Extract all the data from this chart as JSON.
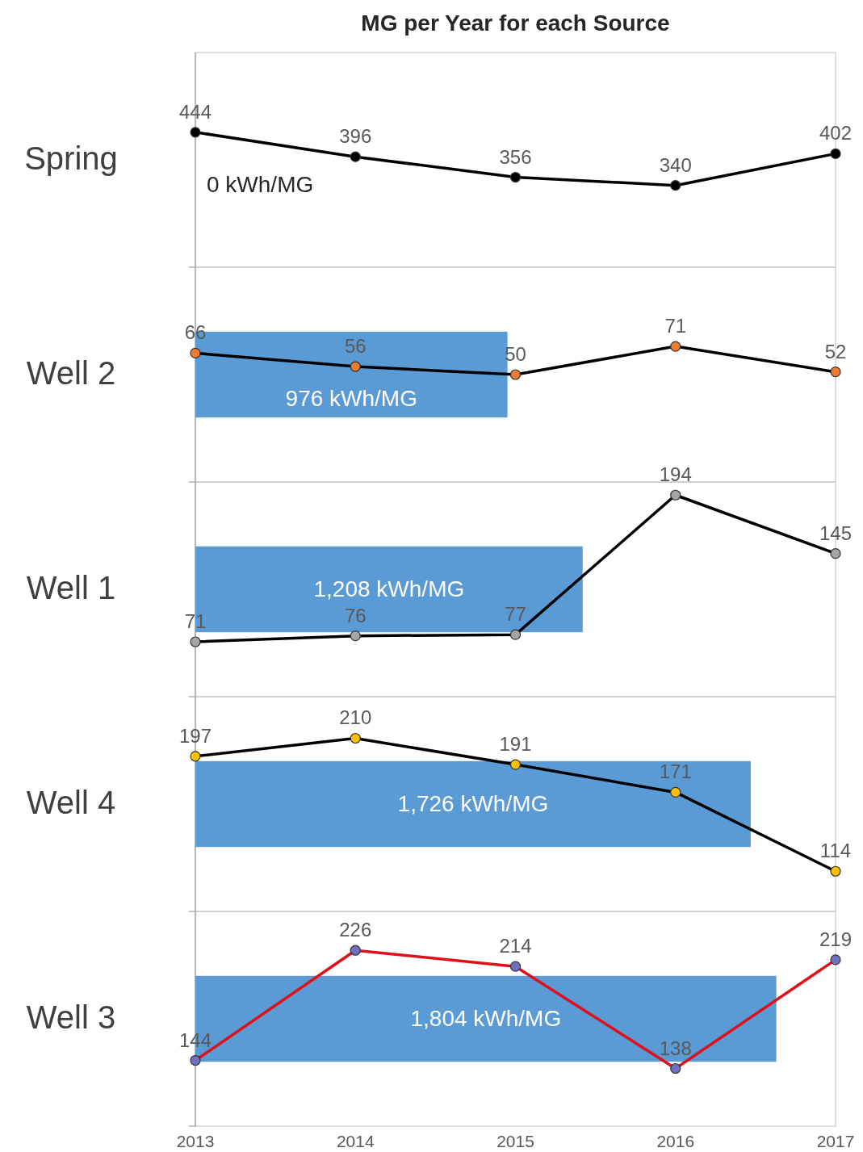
{
  "chart_data": [
    {
      "type": "line",
      "title": "MG per Year for each Source",
      "ylabel": "Spring",
      "x": [
        2013,
        2014,
        2015,
        2016,
        2017
      ],
      "xlim": [
        2013,
        2017
      ],
      "ylim": [
        180,
        600
      ],
      "tick_labels": false,
      "data_labels": true,
      "marker": "circle",
      "series": [
        {
          "color": "#000000",
          "colors": [
            "#000000",
            "#000000",
            "#000000",
            "#000000",
            "#000000"
          ],
          "values": [
            444,
            396,
            356,
            340,
            402
          ]
        }
      ],
      "annotations": [
        "0 kWh/MG"
      ]
    },
    {
      "type": "line",
      "ylabel": "Well 2",
      "x": [
        2013,
        2014,
        2015,
        2016,
        2017
      ],
      "xlim": [
        2013,
        2017
      ],
      "ylim": [
        -30,
        130
      ],
      "tick_labels": false,
      "data_labels": true,
      "marker": "circle",
      "series": [
        {
          "color": "#000000",
          "colors": [
            "#ed7d31",
            "#ed7d31",
            "#ed7d31",
            "#ed7d31",
            "#ed7d31"
          ],
          "values": [
            66,
            56,
            50,
            71,
            52
          ]
        }
      ],
      "bands": [
        {
          "axis": "x",
          "from": 2013,
          "to": 2014.95,
          "label": "976 kWh/MG",
          "color": "#5b9bd5"
        }
      ]
    },
    {
      "type": "line",
      "ylabel": "Well 1",
      "x": [
        2013,
        2014,
        2015,
        2016,
        2017
      ],
      "xlim": [
        2013,
        2017
      ],
      "ylim": [
        25,
        205
      ],
      "tick_labels": false,
      "data_labels": true,
      "marker": "circle",
      "series": [
        {
          "color": "#000000",
          "colors": [
            "#a5a5a5",
            "#a5a5a5",
            "#a5a5a5",
            "#a5a5a5",
            "#a5a5a5"
          ],
          "values": [
            71,
            76,
            77,
            194,
            145
          ]
        }
      ],
      "bands": [
        {
          "axis": "x",
          "from": 2013,
          "to": 2015.42,
          "label": "1,208 kWh/MG",
          "color": "#5b9bd5"
        }
      ]
    },
    {
      "type": "line",
      "ylabel": "Well 4",
      "x": [
        2013,
        2014,
        2015,
        2016,
        2017
      ],
      "xlim": [
        2013,
        2017
      ],
      "ylim": [
        85,
        240
      ],
      "tick_labels": false,
      "data_labels": true,
      "marker": "circle",
      "series": [
        {
          "color": "#000000",
          "colors": [
            "#ffc000",
            "#ffc000",
            "#ffc000",
            "#ffc000",
            "#ffc000"
          ],
          "values": [
            197,
            210,
            191,
            171,
            114
          ]
        }
      ],
      "bands": [
        {
          "axis": "x",
          "from": 2013,
          "to": 2016.47,
          "label": "1,726 kWh/MG",
          "color": "#5b9bd5"
        }
      ]
    },
    {
      "type": "line",
      "ylabel": "Well 3",
      "x": [
        2013,
        2014,
        2015,
        2016,
        2017
      ],
      "xlim": [
        2013,
        2017
      ],
      "xticks": [
        2013,
        2014,
        2015,
        2016,
        2017
      ],
      "ylim": [
        95,
        255
      ],
      "tick_labels": "x",
      "data_labels": true,
      "marker": "circle",
      "series": [
        {
          "color": "#e0101a",
          "colors": [
            "#7070c0",
            "#7070c0",
            "#7070c0",
            "#7070c0",
            "#7070c0"
          ],
          "values": [
            144,
            226,
            214,
            138,
            219
          ]
        }
      ],
      "bands": [
        {
          "axis": "x",
          "from": 2013,
          "to": 2016.63,
          "label": "1,804 kWh/MG",
          "color": "#5b9bd5"
        }
      ]
    }
  ]
}
